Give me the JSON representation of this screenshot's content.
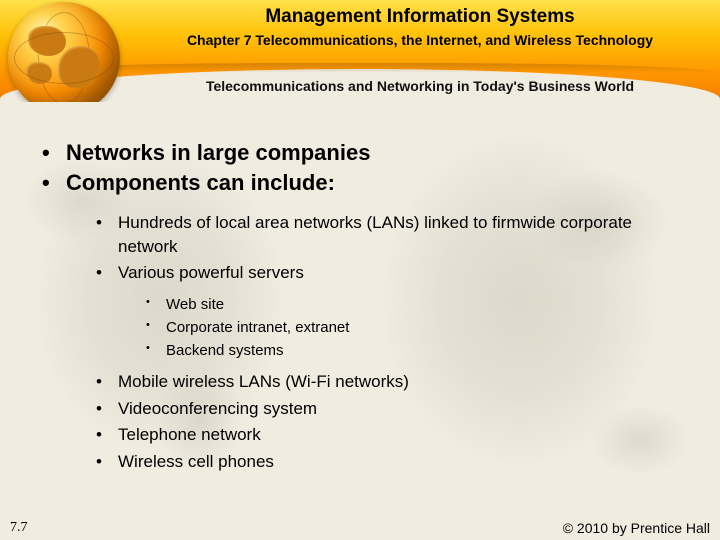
{
  "header": {
    "title": "Management Information Systems",
    "chapter": "Chapter 7 Telecommunications, the Internet, and Wireless Technology",
    "section": "Telecommunications and Networking in Today's Business World",
    "colors": {
      "gradient_top": "#ffe14a",
      "gradient_mid": "#ff9800",
      "gradient_bottom": "#f57c00",
      "globe_highlight": "#fff7c0",
      "globe_shadow": "#8a4b00"
    }
  },
  "body": {
    "background_color": "#f0ece0",
    "map_tint": "#b4afa0",
    "text_color": "#000000",
    "bullets_l1": [
      "Networks in large companies",
      "Components can include:"
    ],
    "bullets_l2a": [
      "Hundreds of local area networks (LANs) linked to firmwide corporate network",
      "Various powerful servers"
    ],
    "bullets_l3": [
      "Web site",
      "Corporate intranet, extranet",
      "Backend systems"
    ],
    "bullets_l2b": [
      "Mobile wireless LANs (Wi-Fi networks)",
      "Videoconferencing system",
      "Telephone network",
      "Wireless cell phones"
    ],
    "font_sizes": {
      "l1": 22,
      "l2": 17,
      "l3": 15
    }
  },
  "footer": {
    "page": "7.7",
    "copyright": "© 2010 by Prentice Hall"
  }
}
